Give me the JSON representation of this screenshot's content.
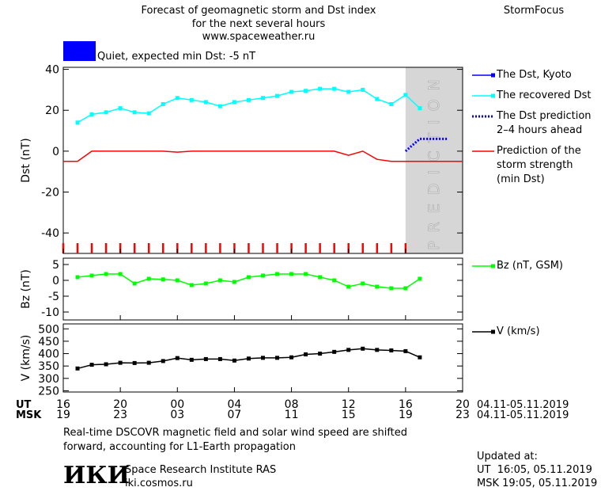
{
  "header": {
    "title": [
      "Forecast of geomagnetic storm and Dst index",
      "for the next several hours",
      "www.spaceweather.ru"
    ],
    "brand": "StormFocus",
    "status": {
      "text": "Quiet, expected min Dst: -5 nT",
      "color": "#0000ff"
    }
  },
  "x_axis": {
    "ut_label": "UT",
    "msk_label": "MSK",
    "date_range": "04.11-05.11.2019"
  },
  "chart_data": [
    {
      "type": "line",
      "ylabel": "Dst (nT)",
      "xlim": [
        16,
        44
      ],
      "ylim": [
        -50,
        41
      ],
      "yticks": [
        -40,
        -20,
        0,
        20,
        40
      ],
      "minor_xticks": [
        16,
        17,
        18,
        19,
        20,
        21,
        22,
        23,
        24,
        25,
        26,
        27,
        28,
        29,
        30,
        31,
        32,
        33,
        34,
        35,
        36,
        37,
        38,
        39,
        40
      ],
      "minor_xtick_color": "#ff0000",
      "prediction_region": [
        40,
        44
      ],
      "prediction_label": "PREDICTION",
      "series": [
        {
          "name": "The Dst, Kyoto",
          "color": "#0000ff",
          "marker": true,
          "dashed": false,
          "x": [],
          "values": []
        },
        {
          "name": "The recovered Dst",
          "color": "#00ffff",
          "marker": true,
          "dashed": false,
          "x": [
            17,
            18,
            19,
            20,
            21,
            22,
            23,
            24,
            25,
            26,
            27,
            28,
            29,
            30,
            31,
            32,
            33,
            34,
            35,
            36,
            37,
            38,
            39,
            40,
            41
          ],
          "values": [
            14,
            18,
            19,
            21,
            19,
            18.5,
            23,
            26,
            25,
            24,
            22,
            24,
            25,
            26,
            27,
            29,
            29.5,
            30.5,
            30.5,
            29,
            30,
            25.5,
            23,
            27.5,
            21
          ]
        },
        {
          "name": "The Dst prediction\n2–4 hours ahead",
          "color": "#0000ff",
          "marker": false,
          "dashed": true,
          "x": [
            40,
            41,
            42,
            43
          ],
          "values": [
            0,
            6,
            6,
            6
          ]
        },
        {
          "name": "Prediction of the\nstorm strength\n(min Dst)",
          "color": "#ff0000",
          "marker": false,
          "dashed": false,
          "x": [
            16,
            17,
            18,
            19,
            20,
            21,
            22,
            23,
            24,
            25,
            26,
            27,
            28,
            29,
            30,
            31,
            32,
            33,
            34,
            35,
            36,
            37,
            38,
            39,
            40,
            41,
            42,
            43,
            44
          ],
          "values": [
            -5,
            -5,
            0,
            0,
            0,
            0,
            0,
            0,
            -0.5,
            0,
            0,
            0,
            0,
            0,
            0,
            0,
            0,
            0,
            0,
            0,
            -2,
            0,
            -4,
            -5,
            -5,
            -5,
            -5,
            -5,
            -5
          ]
        }
      ]
    },
    {
      "type": "line",
      "ylabel": "Bz (nT)",
      "xlim": [
        16,
        44
      ],
      "ylim": [
        -12.5,
        7
      ],
      "yticks": [
        -10,
        -5,
        0,
        5
      ],
      "series": [
        {
          "name": "Bz (nT, GSM)",
          "color": "#00ff00",
          "marker": true,
          "dashed": false,
          "x": [
            17,
            18,
            19,
            20,
            21,
            22,
            23,
            24,
            25,
            26,
            27,
            28,
            29,
            30,
            31,
            32,
            33,
            34,
            35,
            36,
            37,
            38,
            39,
            40,
            41
          ],
          "values": [
            1,
            1.5,
            2,
            2,
            -1,
            0.5,
            0.3,
            0,
            -1.5,
            -1,
            0,
            -0.5,
            1,
            1.5,
            2,
            2,
            2,
            1,
            0,
            -2,
            -1,
            -2,
            -2.5,
            -2.5,
            0.5
          ]
        }
      ]
    },
    {
      "type": "line",
      "ylabel": "V (km/s)",
      "xlim": [
        16,
        44
      ],
      "ylim": [
        245,
        520
      ],
      "yticks": [
        250,
        300,
        350,
        400,
        450,
        500
      ],
      "xticks": [
        16,
        20,
        {
          "value": 24,
          "label": "00"
        },
        {
          "value": 28,
          "label": "04"
        },
        {
          "value": 32,
          "label": "08"
        },
        {
          "value": 36,
          "label": "12"
        },
        {
          "value": 40,
          "label": "16"
        },
        {
          "value": 44,
          "label": "20"
        }
      ],
      "xticks_msk": [
        {
          "value": 16,
          "label": "19"
        },
        {
          "value": 20,
          "label": "23"
        },
        {
          "value": 24,
          "label": "03"
        },
        {
          "value": 28,
          "label": "07"
        },
        {
          "value": 32,
          "label": "11"
        },
        {
          "value": 36,
          "label": "15"
        },
        {
          "value": 40,
          "label": "19"
        },
        {
          "value": 44,
          "label": "23"
        }
      ],
      "series": [
        {
          "name": "V (km/s)",
          "color": "#000000",
          "marker": true,
          "dashed": false,
          "x": [
            17,
            18,
            19,
            20,
            21,
            22,
            23,
            24,
            25,
            26,
            27,
            28,
            29,
            30,
            31,
            32,
            33,
            34,
            35,
            36,
            37,
            38,
            39,
            40,
            41
          ],
          "values": [
            340,
            355,
            357,
            363,
            362,
            363,
            370,
            382,
            375,
            378,
            378,
            372,
            380,
            383,
            383,
            385,
            397,
            400,
            407,
            415,
            420,
            415,
            413,
            410,
            385
          ]
        }
      ]
    }
  ],
  "footer": {
    "note": "Real-time DSCOVR magnetic field and solar wind speed are shifted\nforward, accounting for L1-Earth propagation",
    "logo": "ИКИ",
    "institute": "Space Research Institute RAS",
    "site": "iki.cosmos.ru",
    "updated_label": "Updated at:",
    "updated_ut": "UT  16:05, 05.11.2019",
    "updated_msk": "MSK 19:05, 05.11.2019"
  }
}
